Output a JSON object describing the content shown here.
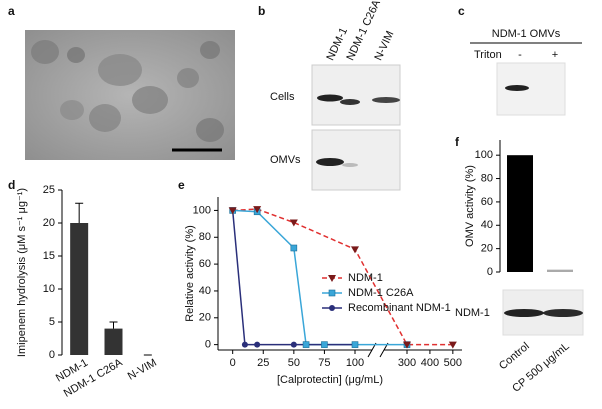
{
  "panel_labels": [
    "a",
    "b",
    "c",
    "d",
    "e",
    "f"
  ],
  "blot_b": {
    "lanes": [
      "NDM-1",
      "NDM-1 C26A",
      "N-VIM"
    ],
    "rows": [
      "Cells",
      "OMVs"
    ]
  },
  "blot_c": {
    "title": "NDM-1 OMVs",
    "row_label": "Triton",
    "lanes": [
      "-",
      "+"
    ]
  },
  "blot_f": {
    "row_label": "NDM-1"
  },
  "chart_data": [
    {
      "type": "bar",
      "y_label": "Imipenem hydrolysis (μM s⁻¹ μg⁻¹)",
      "categories": [
        "NDM-1",
        "NDM-1 C26A",
        "N-VIM"
      ],
      "values": [
        20,
        4,
        0
      ],
      "errors": [
        3,
        1,
        0
      ],
      "colors": [
        "#333333",
        "#333333",
        "#333333"
      ],
      "ylim": [
        0,
        25
      ],
      "yticks": [
        0,
        5,
        10,
        15,
        20,
        25
      ]
    },
    {
      "type": "line",
      "y_label": "Relative activity (%)",
      "x_label": "[Calprotectin] (μg/mL)",
      "xlim": [
        -12,
        540
      ],
      "xticks": [
        0,
        25,
        50,
        75,
        100,
        300,
        400,
        500
      ],
      "ylim": [
        -4,
        110
      ],
      "yticks": [
        0,
        20,
        40,
        60,
        80,
        100
      ],
      "series": [
        {
          "name": "NDM-1",
          "color": "#e03030",
          "marker_color": "#7a1a1a",
          "marker": "triangle-down",
          "dashed": true,
          "x": [
            0,
            20,
            50,
            100,
            300,
            500
          ],
          "values": [
            100,
            101,
            91,
            71,
            0,
            0
          ]
        },
        {
          "name": "NDM-1 C26A",
          "color": "#3aa6d8",
          "marker_color": "#3aa6d8",
          "marker": "square",
          "dashed": false,
          "x": [
            0,
            20,
            50,
            60,
            75,
            100,
            300
          ],
          "values": [
            100,
            99,
            72,
            0,
            0,
            0,
            0
          ]
        },
        {
          "name": "Recombinant NDM-1",
          "color": "#2a2f7a",
          "marker_color": "#2a2f7a",
          "marker": "circle",
          "dashed": false,
          "x": [
            0,
            10,
            20,
            50,
            75,
            100
          ],
          "values": [
            100,
            0,
            0,
            0,
            0,
            0
          ]
        }
      ]
    },
    {
      "type": "bar",
      "y_label": "OMV activity (%)",
      "categories": [
        "Control",
        "CP 500 μg/mL"
      ],
      "values": [
        100,
        2
      ],
      "colors": [
        "#000000",
        "#aaaaaa"
      ],
      "ylim": [
        0,
        113
      ],
      "yticks": [
        0,
        20,
        40,
        60,
        80,
        100
      ]
    }
  ]
}
